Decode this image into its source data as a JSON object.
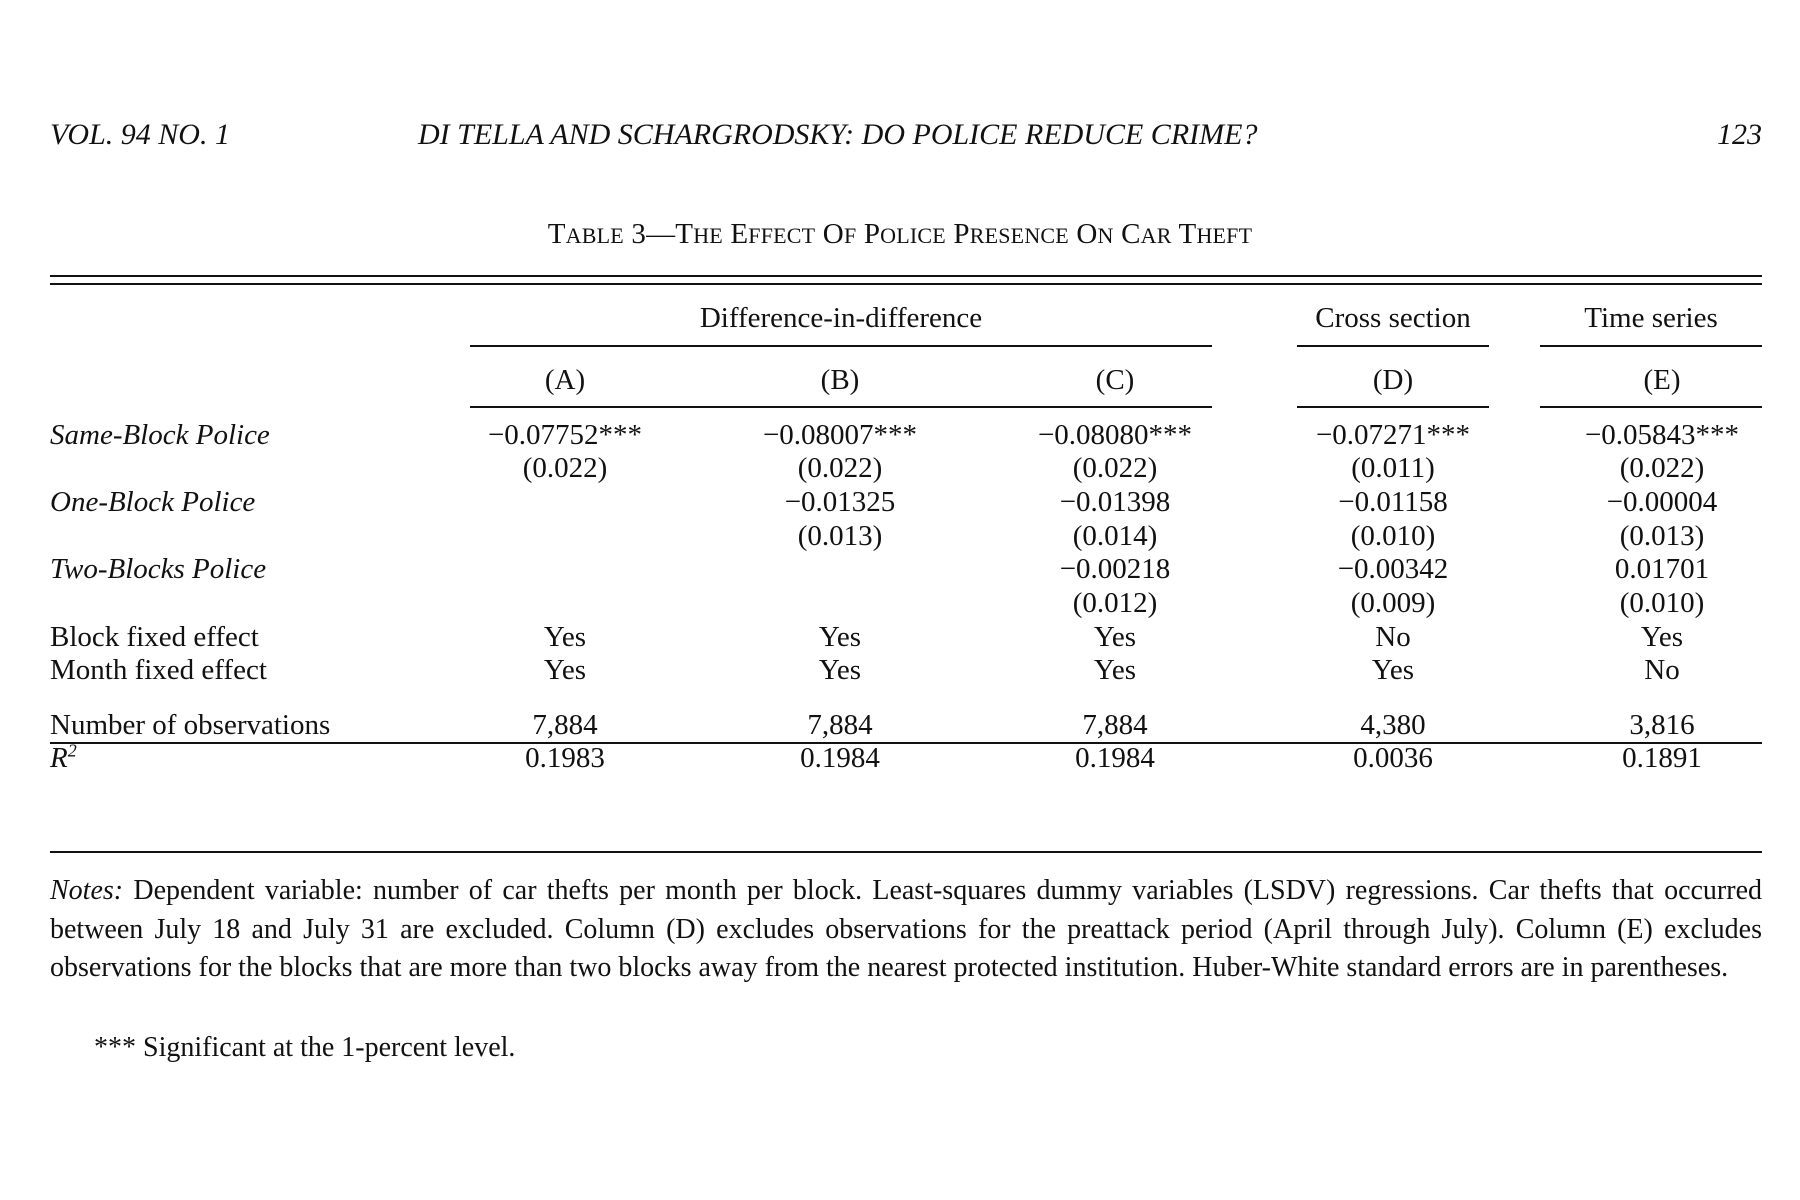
{
  "running_head": {
    "left": "VOL. 94 NO. 1",
    "center": "DI TELLA AND SCHARGRODSKY: DO POLICE REDUCE CRIME?",
    "page_number": "123"
  },
  "table": {
    "title": "TABLE 3—THE EFFECT OF POLICE PRESENCE ON CAR THEFT",
    "group_headers": [
      "Difference-in-difference",
      "Cross section",
      "Time series"
    ],
    "columns": [
      "(A)",
      "(B)",
      "(C)",
      "(D)",
      "(E)"
    ],
    "rows": [
      {
        "label": "Same-Block Police",
        "values": [
          "−0.07752***",
          "−0.08007***",
          "−0.08080***",
          "−0.07271***",
          "−0.05843***"
        ]
      },
      {
        "label": "",
        "values": [
          "(0.022)",
          "(0.022)",
          "(0.022)",
          "(0.011)",
          "(0.022)"
        ]
      },
      {
        "label": "One-Block Police",
        "values": [
          "",
          "−0.01325",
          "−0.01398",
          "−0.01158",
          "−0.00004"
        ]
      },
      {
        "label": "",
        "values": [
          "",
          "(0.013)",
          "(0.014)",
          "(0.010)",
          "(0.013)"
        ]
      },
      {
        "label": "Two-Blocks Police",
        "values": [
          "",
          "",
          "−0.00218",
          "−0.00342",
          "0.01701"
        ]
      },
      {
        "label": "",
        "values": [
          "",
          "",
          "(0.012)",
          "(0.009)",
          "(0.010)"
        ]
      },
      {
        "label": "Block fixed effect",
        "values": [
          "Yes",
          "Yes",
          "Yes",
          "No",
          "Yes"
        ]
      },
      {
        "label": "Month fixed effect",
        "values": [
          "Yes",
          "Yes",
          "Yes",
          "Yes",
          "No"
        ]
      }
    ],
    "stats": [
      {
        "label": "Number of observations",
        "values": [
          "7,884",
          "7,884",
          "7,884",
          "4,380",
          "3,816"
        ]
      },
      {
        "label": "R",
        "label_sup": "2",
        "values": [
          "0.1983",
          "0.1984",
          "0.1984",
          "0.0036",
          "0.1891"
        ]
      }
    ]
  },
  "notes": {
    "label": "Notes:",
    "text": "Dependent variable: number of car thefts per month per block. Least-squares dummy variables (LSDV) regressions. Car thefts that occurred between July 18 and July 31 are excluded. Column (D) excludes observations for the preattack period (April through July). Column (E) excludes observations for the blocks that are more than two blocks away from the nearest protected institution. Huber-White standard errors are in parentheses.",
    "footnote": "*** Significant at the 1-percent level."
  }
}
